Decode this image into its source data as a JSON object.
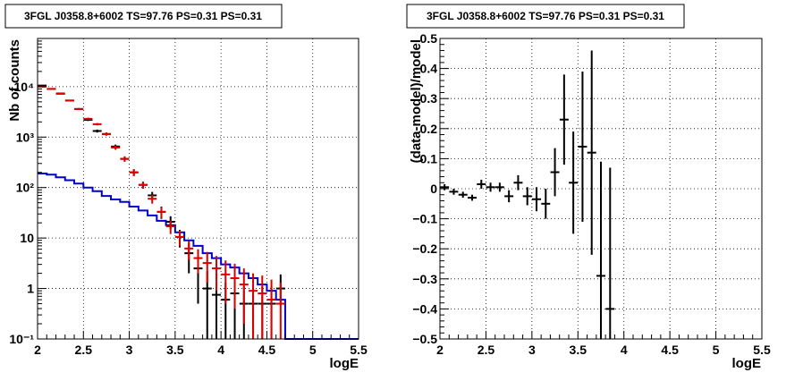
{
  "chart_data": [
    {
      "type": "line",
      "title": "3FGL J0358.8+6002 TS=97.76 PS=0.31 PS=0.31",
      "xlabel": "logE",
      "ylabel": "Nb of counts",
      "xlim": [
        2,
        5.5
      ],
      "ylim": [
        0.1,
        90000
      ],
      "y_scale": "log",
      "grid": true,
      "x_ticks": [
        "2",
        "2.5",
        "3",
        "3.5",
        "4",
        "4.5",
        "5",
        "5.5"
      ],
      "x_tick_values": [
        2,
        2.5,
        3,
        3.5,
        4,
        4.5,
        5,
        5.5
      ],
      "y_ticks": [
        "10⁻¹",
        "1",
        "10",
        "10²",
        "10³",
        "10⁴"
      ],
      "y_tick_values": [
        0.1,
        1,
        10,
        100,
        1000,
        10000
      ],
      "colors": {
        "data": "#000000",
        "model_total": "#dd0000",
        "model_background": "#0000cc"
      },
      "series": [
        {
          "role": "data",
          "x": [
            2.05,
            2.15,
            2.25,
            2.35,
            2.45,
            2.55,
            2.65,
            2.75,
            2.85,
            2.95,
            3.05,
            3.15,
            3.25,
            3.35,
            3.45,
            3.55,
            3.65,
            3.75,
            3.85,
            3.95,
            4.05,
            4.15,
            4.25,
            4.35,
            4.45,
            4.55,
            4.65
          ],
          "y": [
            10500,
            9000,
            7300,
            5300,
            3600,
            2200,
            1320,
            1150,
            650,
            370,
            200,
            113,
            70,
            33,
            21,
            10.5,
            5,
            2.5,
            1,
            0.75,
            0.6,
            0.8,
            0.5,
            0.5,
            0.5,
            0.5,
            1
          ],
          "yerr_low": [
            300,
            250,
            200,
            180,
            150,
            120,
            90,
            80,
            60,
            45,
            30,
            18,
            12,
            9,
            6,
            4,
            3,
            2,
            0.95,
            0.7,
            0.55,
            0.75,
            0.45,
            0.45,
            0.45,
            0.45,
            0.5
          ],
          "yerr_high": [
            300,
            250,
            200,
            180,
            150,
            120,
            90,
            80,
            60,
            45,
            30,
            18,
            12,
            9,
            6,
            4,
            3,
            2,
            1.2,
            0.9,
            0.7,
            0.8,
            0.6,
            0.6,
            0.6,
            0.6,
            0.9
          ]
        },
        {
          "role": "model_total",
          "x": [
            2.05,
            2.15,
            2.25,
            2.35,
            2.45,
            2.55,
            2.65,
            2.75,
            2.85,
            2.95,
            3.05,
            3.15,
            3.25,
            3.35,
            3.45,
            3.55,
            3.65,
            3.75,
            3.85,
            3.95,
            4.05,
            4.15,
            4.25,
            4.35,
            4.45,
            4.55,
            4.65
          ],
          "y": [
            10000,
            9000,
            7200,
            5300,
            3600,
            2300,
            1800,
            1150,
            620,
            370,
            200,
            113,
            60,
            33,
            17,
            10.5,
            6.2,
            4,
            3.2,
            2.5,
            1.9,
            1.6,
            1.2,
            0.9,
            0.8,
            0.6,
            0.5
          ],
          "yerr_low": [
            300,
            250,
            200,
            180,
            150,
            120,
            100,
            80,
            60,
            40,
            30,
            18,
            12,
            8,
            5,
            3.5,
            2.5,
            2,
            1.9,
            1.6,
            1.4,
            1.2,
            1,
            0.8,
            0.7,
            0.5,
            0.45
          ],
          "yerr_high": [
            300,
            250,
            200,
            180,
            150,
            120,
            100,
            80,
            60,
            40,
            30,
            18,
            12,
            8,
            5,
            3.5,
            2.5,
            2,
            2.1,
            1.9,
            1.7,
            1.5,
            1.3,
            1.1,
            1,
            0.9,
            0.8
          ]
        },
        {
          "role": "model_background",
          "step": true,
          "edges": [
            2,
            2.1,
            2.2,
            2.3,
            2.4,
            2.5,
            2.6,
            2.7,
            2.8,
            2.9,
            3.0,
            3.1,
            3.2,
            3.3,
            3.4,
            3.5,
            3.6,
            3.7,
            3.8,
            3.9,
            4.0,
            4.1,
            4.2,
            4.3,
            4.4,
            4.5,
            4.6,
            4.7,
            5.5
          ],
          "y": [
            190,
            180,
            160,
            140,
            120,
            100,
            85,
            68,
            58,
            52,
            42,
            35,
            28,
            22,
            18,
            13,
            9,
            7,
            5,
            4,
            3,
            2.6,
            2,
            1.6,
            1.2,
            0.9,
            0.6,
            0.1
          ]
        }
      ]
    },
    {
      "type": "scatter",
      "title": "3FGL J0358.8+6002 TS=97.76 PS=0.31 PS=0.31",
      "xlabel": "logE",
      "ylabel": "(data-model)/model",
      "xlim": [
        2,
        5.5
      ],
      "ylim": [
        -0.5,
        0.5
      ],
      "grid": true,
      "x_ticks": [
        "2",
        "2.5",
        "3",
        "3.5",
        "4",
        "4.5",
        "5",
        "5.5"
      ],
      "x_tick_values": [
        2,
        2.5,
        3,
        3.5,
        4,
        4.5,
        5,
        5.5
      ],
      "y_ticks": [
        "−0.5",
        "−0.4",
        "−0.3",
        "−0.2",
        "−0.1",
        "0",
        "0.1",
        "0.2",
        "0.3",
        "0.4",
        "0.5"
      ],
      "y_tick_values": [
        -0.5,
        -0.4,
        -0.3,
        -0.2,
        -0.1,
        0,
        0.1,
        0.2,
        0.3,
        0.4,
        0.5
      ],
      "colors": {
        "data": "#000000"
      },
      "series": [
        {
          "role": "data",
          "x": [
            2.05,
            2.15,
            2.25,
            2.35,
            2.45,
            2.55,
            2.65,
            2.75,
            2.85,
            2.95,
            3.05,
            3.15,
            3.25,
            3.35,
            3.45,
            3.55,
            3.65,
            3.75,
            3.85
          ],
          "y": [
            0.005,
            -0.01,
            -0.02,
            -0.03,
            0.015,
            0.005,
            0.005,
            -0.025,
            0.02,
            -0.025,
            -0.035,
            -0.05,
            0.055,
            0.23,
            0.02,
            0.14,
            0.12,
            -0.29,
            -0.4
          ],
          "yerr": [
            0.01,
            0.01,
            0.01,
            0.01,
            0.015,
            0.015,
            0.015,
            0.02,
            0.025,
            0.03,
            0.04,
            0.05,
            0.08,
            0.15,
            0.17,
            0.25,
            0.34,
            0.38,
            0.47
          ]
        }
      ]
    }
  ]
}
